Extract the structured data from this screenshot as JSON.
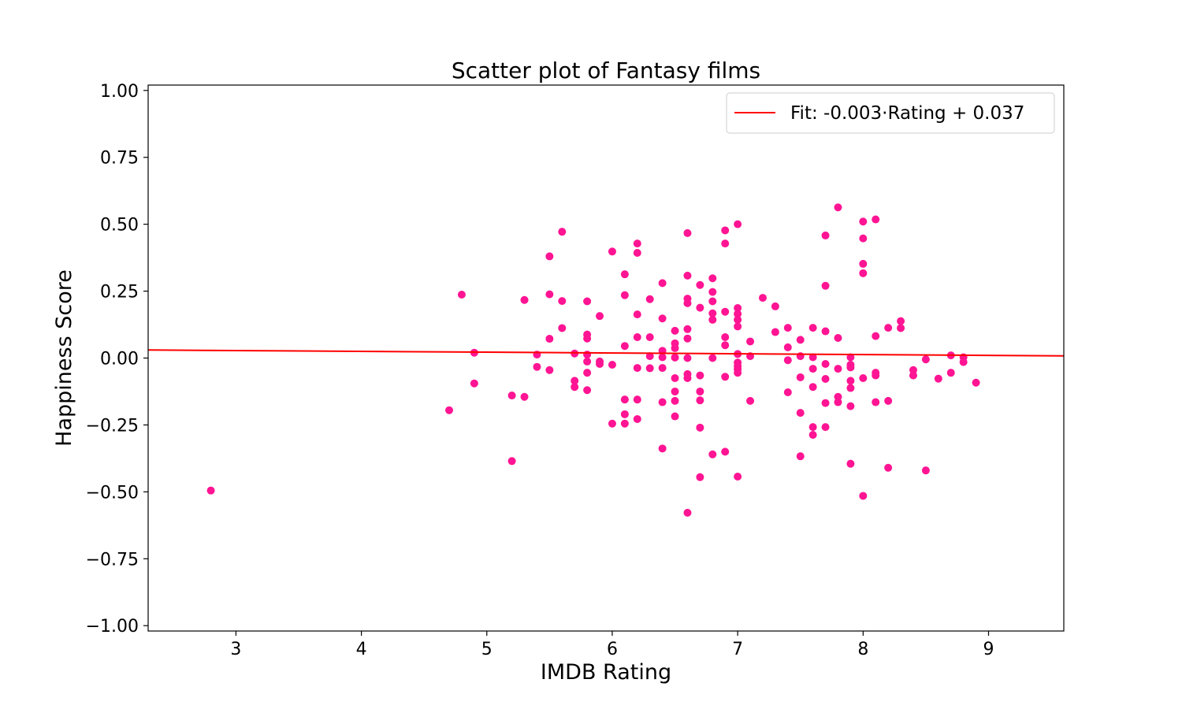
{
  "chart_data": {
    "type": "scatter",
    "title": "Scatter plot of Fantasy films",
    "xlabel": "IMDB Rating",
    "ylabel": "Happiness Score",
    "xlim": [
      2.3,
      9.6
    ],
    "ylim": [
      -1.02,
      1.02
    ],
    "xticks": [
      3,
      4,
      5,
      6,
      7,
      8,
      9
    ],
    "xtick_labels": [
      "3",
      "4",
      "5",
      "6",
      "7",
      "8",
      "9"
    ],
    "yticks": [
      -1.0,
      -0.75,
      -0.5,
      -0.25,
      0.0,
      0.25,
      0.5,
      0.75,
      1.0
    ],
    "ytick_labels": [
      "−1.00",
      "−0.75",
      "−0.50",
      "−0.25",
      "0.00",
      "0.25",
      "0.50",
      "0.75",
      "1.00"
    ],
    "grid": false,
    "legend_position": "top-right",
    "colors": {
      "points": "#ff1493",
      "fit_line": "#ff0000"
    },
    "series": [
      {
        "kind": "points",
        "x": [
          2.8,
          4.7,
          4.8,
          4.9,
          4.9,
          5.2,
          5.2,
          5.3,
          5.3,
          5.4,
          5.4,
          5.5,
          5.5,
          5.5,
          5.5,
          5.6,
          5.6,
          5.6,
          5.7,
          5.7,
          5.7,
          5.8,
          5.8,
          5.8,
          5.8,
          5.8,
          5.8,
          5.8,
          5.9,
          5.9,
          5.9,
          6.0,
          6.0,
          6.0,
          6.1,
          6.1,
          6.1,
          6.1,
          6.1,
          6.1,
          6.2,
          6.2,
          6.2,
          6.2,
          6.2,
          6.2,
          6.2,
          6.3,
          6.3,
          6.3,
          6.3,
          6.4,
          6.4,
          6.4,
          6.4,
          6.4,
          6.4,
          6.4,
          6.5,
          6.5,
          6.5,
          6.5,
          6.5,
          6.5,
          6.5,
          6.5,
          6.6,
          6.6,
          6.6,
          6.6,
          6.6,
          6.6,
          6.6,
          6.6,
          6.6,
          6.6,
          6.7,
          6.7,
          6.7,
          6.7,
          6.7,
          6.7,
          6.7,
          6.8,
          6.8,
          6.8,
          6.8,
          6.8,
          6.8,
          6.8,
          6.9,
          6.9,
          6.9,
          6.9,
          6.9,
          6.9,
          6.9,
          7.0,
          7.0,
          7.0,
          7.0,
          7.0,
          7.0,
          7.0,
          7.0,
          7.0,
          7.0,
          7.0,
          7.1,
          7.1,
          7.1,
          7.2,
          7.3,
          7.3,
          7.4,
          7.4,
          7.4,
          7.4,
          7.5,
          7.5,
          7.5,
          7.5,
          7.5,
          7.6,
          7.6,
          7.6,
          7.6,
          7.6,
          7.6,
          7.7,
          7.7,
          7.7,
          7.7,
          7.7,
          7.7,
          7.7,
          7.8,
          7.8,
          7.8,
          7.8,
          7.8,
          7.9,
          7.9,
          7.9,
          7.9,
          7.9,
          7.9,
          7.9,
          8.0,
          8.0,
          8.0,
          8.0,
          8.0,
          8.0,
          8.1,
          8.1,
          8.1,
          8.1,
          8.1,
          8.2,
          8.2,
          8.2,
          8.3,
          8.3,
          8.4,
          8.4,
          8.5,
          8.5,
          8.6,
          8.7,
          8.7,
          8.8,
          8.8,
          8.9
        ],
        "y": [
          -0.495,
          -0.195,
          0.237,
          0.02,
          -0.095,
          -0.14,
          -0.385,
          0.217,
          -0.145,
          0.013,
          -0.033,
          0.38,
          0.238,
          0.072,
          -0.045,
          0.472,
          0.213,
          0.112,
          0.017,
          -0.085,
          -0.108,
          0.212,
          0.088,
          0.073,
          0.013,
          -0.013,
          -0.055,
          -0.12,
          0.157,
          -0.013,
          -0.022,
          0.398,
          -0.025,
          -0.245,
          0.313,
          0.235,
          0.045,
          -0.155,
          -0.21,
          -0.245,
          0.428,
          0.393,
          0.163,
          0.078,
          -0.037,
          -0.155,
          -0.228,
          0.22,
          0.078,
          0.007,
          -0.038,
          0.28,
          0.148,
          0.027,
          -0.037,
          -0.165,
          -0.338,
          0.003,
          0.102,
          0.055,
          0.037,
          0.002,
          -0.075,
          -0.125,
          -0.16,
          -0.218,
          0.467,
          0.308,
          0.222,
          0.205,
          0.108,
          0.073,
          -0.06,
          -0.075,
          -0.578,
          0.0,
          0.273,
          0.188,
          -0.065,
          -0.125,
          -0.158,
          -0.26,
          -0.445,
          0.298,
          0.247,
          0.212,
          0.167,
          0.143,
          0.0,
          -0.36,
          0.477,
          0.428,
          0.173,
          0.078,
          0.048,
          -0.07,
          -0.35,
          0.5,
          0.187,
          0.165,
          0.143,
          0.118,
          0.015,
          -0.017,
          -0.03,
          -0.042,
          -0.055,
          -0.443,
          0.062,
          0.007,
          -0.16,
          0.225,
          0.193,
          0.097,
          0.113,
          0.04,
          -0.008,
          -0.128,
          0.068,
          0.007,
          -0.072,
          -0.205,
          -0.367,
          0.113,
          0.003,
          -0.04,
          -0.108,
          -0.258,
          -0.287,
          0.458,
          0.27,
          0.1,
          -0.022,
          -0.078,
          -0.168,
          -0.258,
          0.563,
          0.075,
          -0.04,
          -0.145,
          -0.165,
          0.003,
          -0.025,
          -0.035,
          -0.085,
          -0.112,
          -0.18,
          -0.395,
          0.51,
          0.447,
          0.352,
          0.317,
          -0.075,
          -0.515,
          0.518,
          0.082,
          -0.055,
          -0.065,
          -0.165,
          0.113,
          -0.16,
          -0.41,
          0.138,
          0.112,
          -0.045,
          -0.065,
          -0.005,
          -0.42,
          -0.077,
          0.01,
          -0.055,
          0.003,
          -0.015,
          -0.092
        ]
      },
      {
        "kind": "line",
        "name": "Fit: -0.003·Rating + 0.037",
        "slope": -0.003,
        "intercept": 0.037
      }
    ]
  }
}
